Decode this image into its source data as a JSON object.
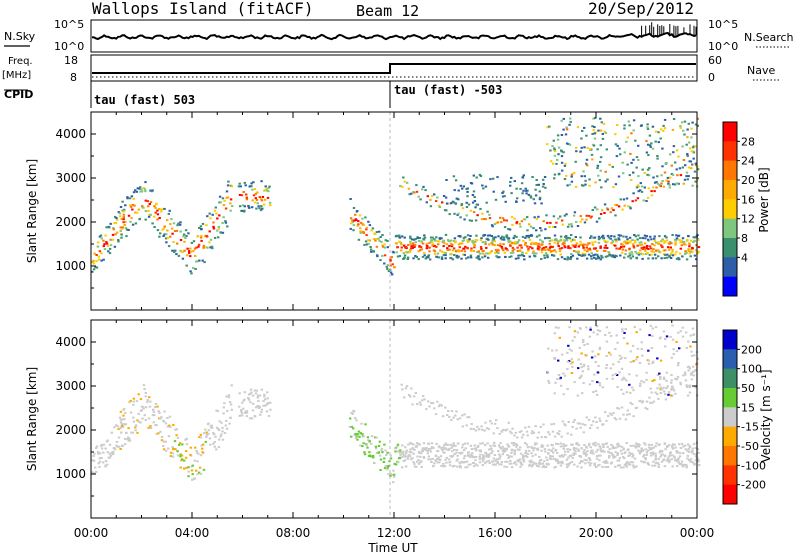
{
  "header": {
    "title": "Wallops Island (fitACF)",
    "beam": "Beam 12",
    "date": "20/Sep/2012"
  },
  "noise_panel": {
    "left_label": "N.Sky",
    "left_ticks": [
      "10^5",
      "10^0"
    ],
    "right_label": "N.Search",
    "right_ticks": [
      "10^5",
      "10^0"
    ]
  },
  "freq_panel": {
    "left_label_line1": "Freq.",
    "left_label_line2": "[MHz]",
    "left_ticks": [
      "18",
      "8"
    ],
    "right_label": "Nave",
    "right_ticks": [
      "60",
      "0"
    ],
    "cpid_label": "CPID",
    "cpid_segments": [
      "tau (fast) 503",
      "tau (fast) -503"
    ]
  },
  "chart_data": [
    {
      "type": "heatmap",
      "title": "",
      "ylabel": "Slant Range [km]",
      "ylim": [
        0,
        4500
      ],
      "yticks": [
        "4000",
        "3000",
        "2000",
        "1000"
      ],
      "xlabel": "Time UT",
      "xlim": [
        "00:00",
        "24:00"
      ],
      "xticks": [
        "00:00",
        "04:00",
        "08:00",
        "12:00",
        "16:00",
        "20:00",
        "00:00"
      ],
      "colorbar": {
        "label": "Power [dB]",
        "ticks": [
          "28",
          "24",
          "20",
          "16",
          "12",
          "8",
          "4"
        ],
        "colors": [
          "#ff0000",
          "#ff3300",
          "#ff7700",
          "#ffaa00",
          "#ffcc00",
          "#7fc67f",
          "#3a8f6e",
          "#2c5fa8",
          "#0000ff"
        ]
      }
    },
    {
      "type": "heatmap",
      "title": "",
      "ylabel": "Slant Range [km]",
      "ylim": [
        0,
        4500
      ],
      "yticks": [
        "4000",
        "3000",
        "2000",
        "1000"
      ],
      "xlabel": "Time UT",
      "xlim": [
        "00:00",
        "24:00"
      ],
      "xticks": [
        "00:00",
        "04:00",
        "08:00",
        "12:00",
        "16:00",
        "20:00",
        "00:00"
      ],
      "colorbar": {
        "label": "Velocity [m s⁻¹]",
        "ticks": [
          "200",
          "100",
          "50",
          "15",
          "-15",
          "-50",
          "-100",
          "-200"
        ],
        "colors": [
          "#0000cc",
          "#2a5fb0",
          "#3f8f66",
          "#66cc33",
          "#cccccc",
          "#ffaa00",
          "#ff7700",
          "#ff3300",
          "#ff0000"
        ]
      }
    }
  ],
  "x_axis": {
    "label": "Time UT",
    "ticks": [
      "00:00",
      "04:00",
      "08:00",
      "12:00",
      "16:00",
      "20:00",
      "00:00"
    ]
  }
}
